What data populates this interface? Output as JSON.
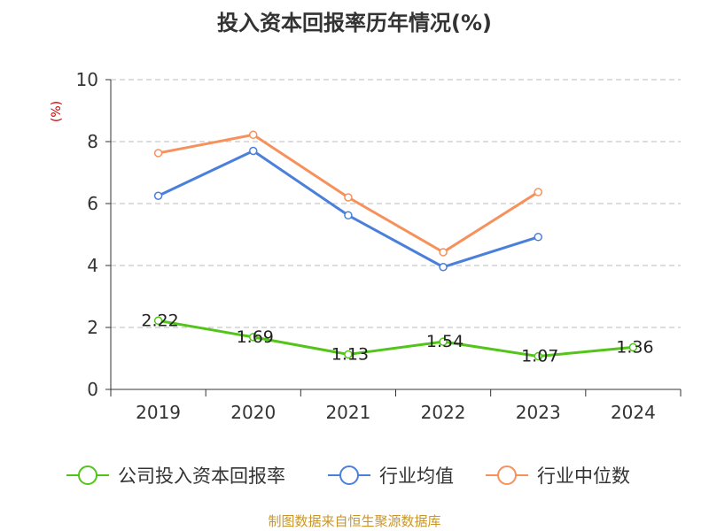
{
  "chart_data": {
    "type": "line",
    "title": "投入资本回报率历年情况(%)",
    "ylabel": "(%)",
    "xlabel": "",
    "categories": [
      "2019",
      "2020",
      "2021",
      "2022",
      "2023",
      "2024"
    ],
    "ylim": [
      0,
      10
    ],
    "yticks": [
      0,
      2,
      4,
      6,
      8,
      10
    ],
    "grid": true,
    "legend_position": "bottom",
    "series": [
      {
        "name": "公司投入资本回报率",
        "color": "#52c41a",
        "values": [
          2.22,
          1.69,
          1.13,
          1.54,
          1.07,
          1.36
        ],
        "labels": [
          "2.22",
          "1.69",
          "1.13",
          "1.54",
          "1.07",
          "1.36"
        ]
      },
      {
        "name": "行业均值",
        "color": "#4a7fdb",
        "values": [
          6.25,
          7.7,
          5.62,
          3.95,
          4.92,
          null
        ]
      },
      {
        "name": "行业中位数",
        "color": "#f6915c",
        "values": [
          7.63,
          8.22,
          6.2,
          4.43,
          6.37,
          null
        ]
      }
    ]
  },
  "source": "制图数据来自恒生聚源数据库"
}
